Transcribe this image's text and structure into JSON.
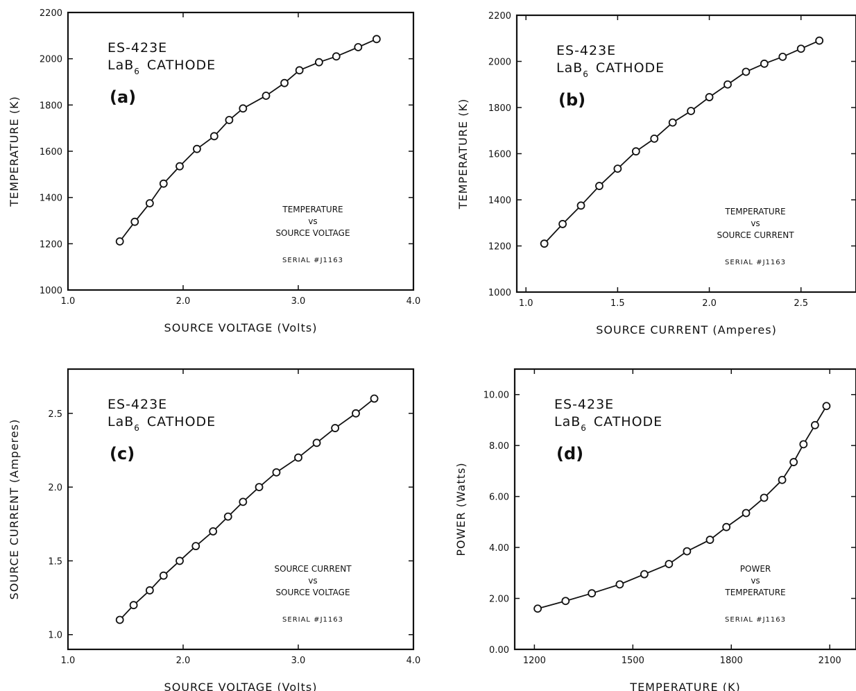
{
  "chart_data": [
    {
      "type": "line",
      "panel": "(a)",
      "device": "ES-423E",
      "cathode_prefix": "LaB",
      "cathode_sub": "6",
      "cathode_suffix": "CATHODE",
      "caption": [
        "TEMPERATURE",
        "vs",
        "SOURCE VOLTAGE"
      ],
      "serial": "SERIAL #J1163",
      "xlabel": "SOURCE VOLTAGE (Volts)",
      "ylabel": "TEMPERATURE (K)",
      "xlim": [
        1.0,
        4.0
      ],
      "ylim": [
        1000,
        2200
      ],
      "xticks": [
        1.0,
        2.0,
        3.0,
        4.0
      ],
      "xtick_labels": [
        "1.0",
        "2.0",
        "3.0",
        "4.0"
      ],
      "yticks": [
        1000,
        1200,
        1400,
        1600,
        1800,
        2000,
        2200
      ],
      "ytick_labels": [
        "1000",
        "1200",
        "1400",
        "1600",
        "1800",
        "2000",
        "2200"
      ],
      "marker": "open-circle",
      "x": [
        1.45,
        1.58,
        1.71,
        1.83,
        1.97,
        2.12,
        2.27,
        2.4,
        2.52,
        2.72,
        2.88,
        3.01,
        3.18,
        3.33,
        3.52,
        3.68
      ],
      "y": [
        1210,
        1295,
        1375,
        1460,
        1535,
        1610,
        1665,
        1735,
        1785,
        1840,
        1895,
        1950,
        1985,
        2010,
        2050,
        2085
      ]
    },
    {
      "type": "line",
      "panel": "(b)",
      "device": "ES-423E",
      "cathode_prefix": "LaB",
      "cathode_sub": "6",
      "cathode_suffix": "CATHODE",
      "caption": [
        "TEMPERATURE",
        "vs",
        "SOURCE CURRENT"
      ],
      "serial": "SERIAL #J1163",
      "xlabel": "SOURCE CURRENT (Amperes)",
      "ylabel": "TEMPERATURE (K)",
      "xlim": [
        0.95,
        2.8
      ],
      "ylim": [
        1000,
        2200
      ],
      "xticks": [
        1.0,
        1.5,
        2.0,
        2.5
      ],
      "xtick_labels": [
        "1.0",
        "1.5",
        "2.0",
        "2.5"
      ],
      "yticks": [
        1000,
        1200,
        1400,
        1600,
        1800,
        2000,
        2200
      ],
      "ytick_labels": [
        "1000",
        "1200",
        "1400",
        "1600",
        "1800",
        "2000",
        "2200"
      ],
      "marker": "open-circle",
      "x": [
        1.1,
        1.2,
        1.3,
        1.4,
        1.5,
        1.6,
        1.7,
        1.8,
        1.9,
        2.0,
        2.1,
        2.2,
        2.3,
        2.4,
        2.5,
        2.6
      ],
      "y": [
        1210,
        1295,
        1375,
        1460,
        1535,
        1610,
        1665,
        1735,
        1785,
        1845,
        1900,
        1955,
        1990,
        2020,
        2055,
        2090
      ]
    },
    {
      "type": "line",
      "panel": "(c)",
      "device": "ES-423E",
      "cathode_prefix": "LaB",
      "cathode_sub": "6",
      "cathode_suffix": "CATHODE",
      "caption": [
        "SOURCE CURRENT",
        "vs",
        "SOURCE VOLTAGE"
      ],
      "serial": "SERIAL #J1163",
      "xlabel": "SOURCE VOLTAGE (Volts)",
      "ylabel": "SOURCE CURRENT (Amperes)",
      "xlim": [
        1.0,
        4.0
      ],
      "ylim": [
        0.9,
        2.8
      ],
      "xticks": [
        1.0,
        2.0,
        3.0,
        4.0
      ],
      "xtick_labels": [
        "1.0",
        "2.0",
        "3.0",
        "4.0"
      ],
      "yticks": [
        1.0,
        1.5,
        2.0,
        2.5
      ],
      "ytick_labels": [
        "1.0",
        "1.5",
        "2.0",
        "2.5"
      ],
      "marker": "open-circle",
      "x": [
        1.45,
        1.57,
        1.71,
        1.83,
        1.97,
        2.11,
        2.26,
        2.39,
        2.52,
        2.66,
        2.81,
        3.0,
        3.16,
        3.32,
        3.5,
        3.66
      ],
      "y": [
        1.1,
        1.2,
        1.3,
        1.4,
        1.5,
        1.6,
        1.7,
        1.8,
        1.9,
        2.0,
        2.1,
        2.2,
        2.3,
        2.4,
        2.5,
        2.6
      ]
    },
    {
      "type": "line",
      "panel": "(d)",
      "device": "ES-423E",
      "cathode_prefix": "LaB",
      "cathode_sub": "6",
      "cathode_suffix": "CATHODE",
      "caption": [
        "POWER",
        "vs",
        "TEMPERATURE"
      ],
      "serial": "SERIAL #J1163",
      "xlabel": "TEMPERATURE (K)",
      "ylabel": "POWER (Watts)",
      "xlim": [
        1140,
        2180
      ],
      "ylim": [
        0.0,
        11.0
      ],
      "xticks": [
        1200,
        1500,
        1800,
        2100
      ],
      "xtick_labels": [
        "1200",
        "1500",
        "1800",
        "2100"
      ],
      "yticks": [
        0.0,
        2.0,
        4.0,
        6.0,
        8.0,
        10.0
      ],
      "ytick_labels": [
        "0.00",
        "2.00",
        "4.00",
        "6.00",
        "8.00",
        "10.00"
      ],
      "marker": "open-circle",
      "x": [
        1210,
        1295,
        1375,
        1460,
        1535,
        1610,
        1665,
        1735,
        1785,
        1845,
        1900,
        1955,
        1990,
        2020,
        2055,
        2090
      ],
      "y": [
        1.6,
        1.9,
        2.2,
        2.55,
        2.95,
        3.35,
        3.85,
        4.3,
        4.8,
        5.35,
        5.95,
        6.65,
        7.35,
        8.05,
        8.8,
        9.55
      ]
    }
  ]
}
